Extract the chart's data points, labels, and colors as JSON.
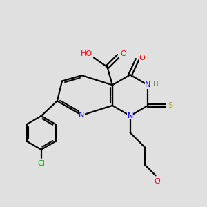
{
  "bg_color": "#e0e0e0",
  "atom_colors": {
    "C": "#000000",
    "N": "#0000ff",
    "O": "#ff0000",
    "S": "#bbaa00",
    "Cl": "#00aa00",
    "H": "#808080"
  },
  "figsize": [
    3.0,
    3.0
  ],
  "dpi": 100
}
